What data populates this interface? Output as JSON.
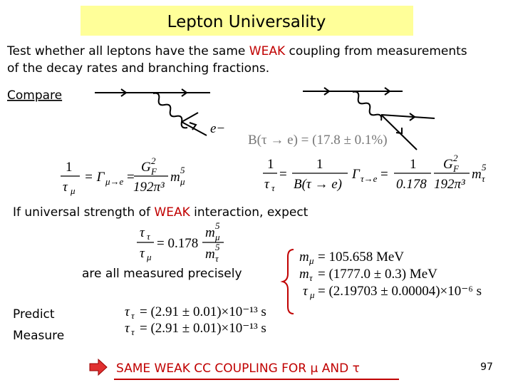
{
  "header": {
    "title": "Lepton Universality"
  },
  "intro": {
    "before": "Test whether all leptons have the same ",
    "highlight": "WEAK",
    "line1_after": " coupling from measurements",
    "line2": "of the decay rates and branching fractions."
  },
  "compare": "Compare",
  "diagram": {
    "electron_label": "e−"
  },
  "branching_ratio": "B(τ → e) = (17.8 ± 0.1%)",
  "formula_muon": {
    "numerator": "1",
    "tau": "τ",
    "tau_sub": "μ",
    "gamma": "= Γ",
    "gamma_sub": "μ→e",
    "equals": "=",
    "gf": "G",
    "gf_sub": "F",
    "gf_sup": "2",
    "denominator": "192π³",
    "mass": "m",
    "mass_sub": "μ",
    "mass_sup": "5"
  },
  "formula_tau": {
    "numerator": "1",
    "tau": "τ",
    "tau_sub": "τ",
    "equals1": "=",
    "br_numerator": "1",
    "br_denominator": "B(τ → e)",
    "gamma": "Γ",
    "gamma_sub": "τ→e",
    "equals2": "=",
    "c_numerator": "1",
    "c_denominator": "0.178",
    "gf": "G",
    "gf_sub": "F",
    "gf_sup": "2",
    "denominator": "192π³",
    "mass": "m",
    "mass_sub": "τ",
    "mass_sup": "5"
  },
  "expect": {
    "before": "If universal strength of ",
    "highlight": "WEAK",
    "after": " interaction, expect"
  },
  "ratio": {
    "tau_top": "τ",
    "tau_top_sub": "τ",
    "tau_bottom": "τ",
    "tau_bottom_sub": "μ",
    "equals": "= 0.178",
    "m_top": "m",
    "m_top_sub": "μ",
    "m_top_sup": "5",
    "m_bottom": "m",
    "m_bottom_sub": "τ",
    "m_bottom_sup": "5"
  },
  "measured_note": "are all measured precisely",
  "measurements": [
    {
      "symbol": "m",
      "sub": "μ",
      "value": "= 105.658 MeV"
    },
    {
      "symbol": "m",
      "sub": "τ",
      "value": "= (1777.0 ± 0.3) MeV"
    },
    {
      "symbol": "τ",
      "sub": "μ",
      "value": "= (2.19703 ± 0.00004)×10⁻⁶ s"
    }
  ],
  "comparison": [
    {
      "label": "Predict",
      "symbol": "τ",
      "sub": "τ",
      "value": "= (2.91 ± 0.01)×10⁻¹³ s"
    },
    {
      "label": "Measure",
      "symbol": "τ",
      "sub": "τ",
      "value": "= (2.91 ± 0.01)×10⁻¹³ s"
    }
  ],
  "conclusion": "SAME WEAK CC COUPLING FOR μ AND τ",
  "page_number": "97"
}
